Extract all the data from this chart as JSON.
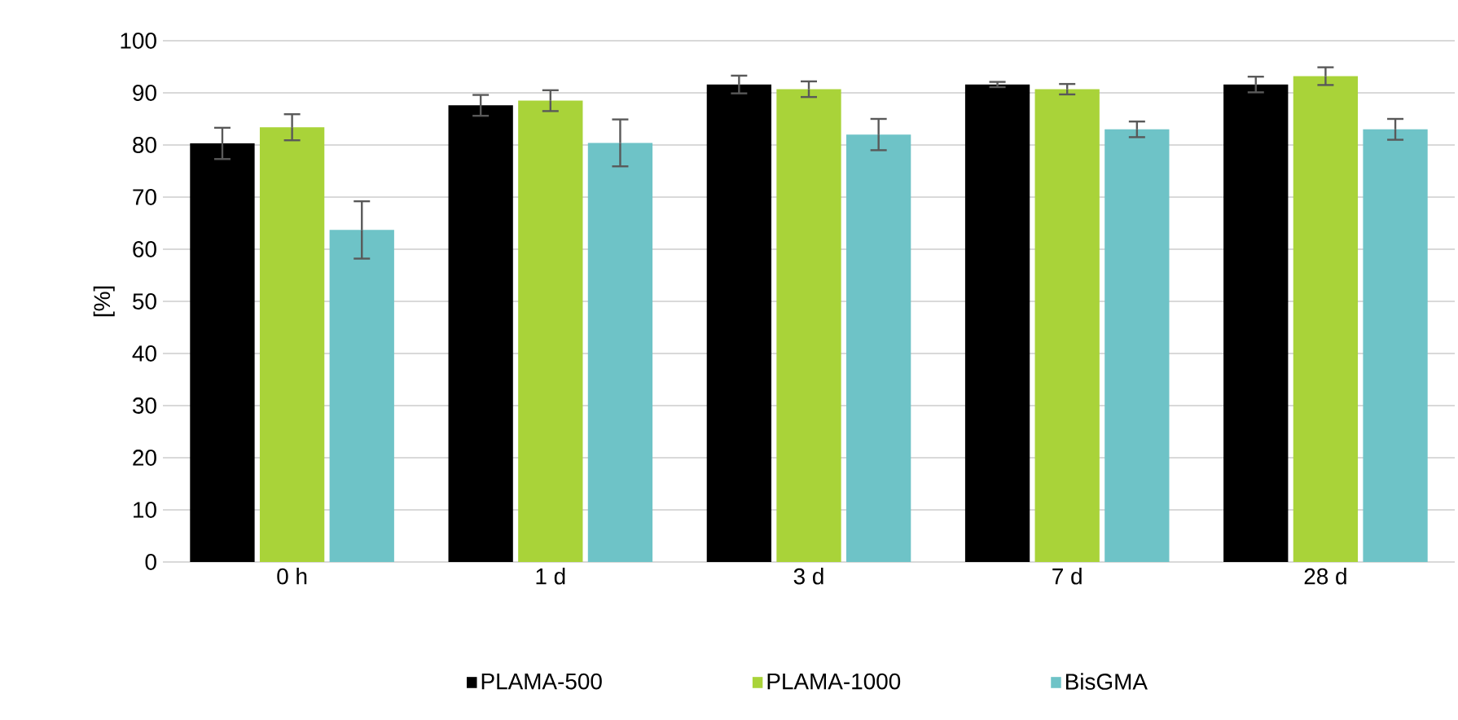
{
  "chart_data": {
    "type": "bar",
    "ylabel": "[%]",
    "categories": [
      "0 h",
      "1 d",
      "3 d",
      "7 d",
      "28 d"
    ],
    "series": [
      {
        "name": "PLAMA-500",
        "color": "#000000",
        "values": [
          80.3,
          87.6,
          91.6,
          91.6,
          91.6
        ],
        "errors": [
          3,
          2,
          1.7,
          0.5,
          1.5
        ]
      },
      {
        "name": "PLAMA-1000",
        "color": "#a9d339",
        "values": [
          83.4,
          88.5,
          90.7,
          90.7,
          93.2
        ],
        "errors": [
          2.5,
          2,
          1.5,
          1,
          1.7
        ]
      },
      {
        "name": "BisGMA",
        "color": "#6ec3c7",
        "values": [
          63.7,
          80.4,
          82,
          83,
          83
        ],
        "errors": [
          5.5,
          4.5,
          3,
          1.5,
          2
        ]
      }
    ],
    "ylim": [
      0,
      100
    ],
    "yticks": [
      0,
      10,
      20,
      30,
      40,
      50,
      60,
      70,
      80,
      90,
      100
    ],
    "grid": "y",
    "legend": "bottom"
  }
}
